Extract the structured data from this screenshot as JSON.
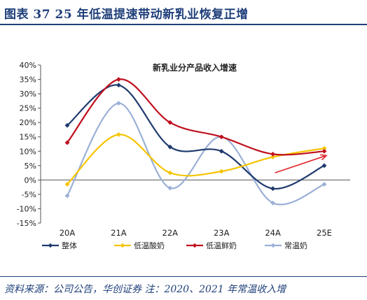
{
  "figure": {
    "title": "图表 37   25 年低温提速带动新乳业恢复正增",
    "source": "资料来源：公司公告，华创证券 注：2020、2021 年常温收入增"
  },
  "chart_data": {
    "type": "line",
    "title": "新乳业分产品收入增速",
    "xlabel": "",
    "ylabel": "",
    "categories": [
      "20A",
      "21A",
      "22A",
      "23A",
      "24A",
      "25E"
    ],
    "ylim": [
      -0.15,
      0.4
    ],
    "yticks": [
      "-15%",
      "-10%",
      "-5%",
      "0%",
      "5%",
      "10%",
      "15%",
      "20%",
      "25%",
      "30%",
      "35%",
      "40%"
    ],
    "ytick_values": [
      -0.15,
      -0.1,
      -0.05,
      0,
      0.05,
      0.1,
      0.15,
      0.2,
      0.25,
      0.3,
      0.35,
      0.4
    ],
    "smooth": true,
    "grid": false,
    "legend_position": "bottom",
    "series": [
      {
        "name": "整体",
        "color": "#1f3a6e",
        "values": [
          0.19,
          0.33,
          0.115,
          0.1,
          -0.03,
          0.05
        ]
      },
      {
        "name": "低温酸奶",
        "color": "#f5c400",
        "values": [
          -0.015,
          0.158,
          0.025,
          0.03,
          0.08,
          0.11
        ]
      },
      {
        "name": "低温鲜奶",
        "color": "#c0101e",
        "values": [
          0.13,
          0.35,
          0.2,
          0.15,
          0.09,
          0.1
        ]
      },
      {
        "name": "常温奶",
        "color": "#9bb0d6",
        "values": [
          -0.055,
          0.267,
          -0.028,
          0.15,
          -0.08,
          -0.015
        ]
      }
    ],
    "annotation": {
      "type": "arrow",
      "color": "#e0262b",
      "direction": "up-right"
    }
  }
}
